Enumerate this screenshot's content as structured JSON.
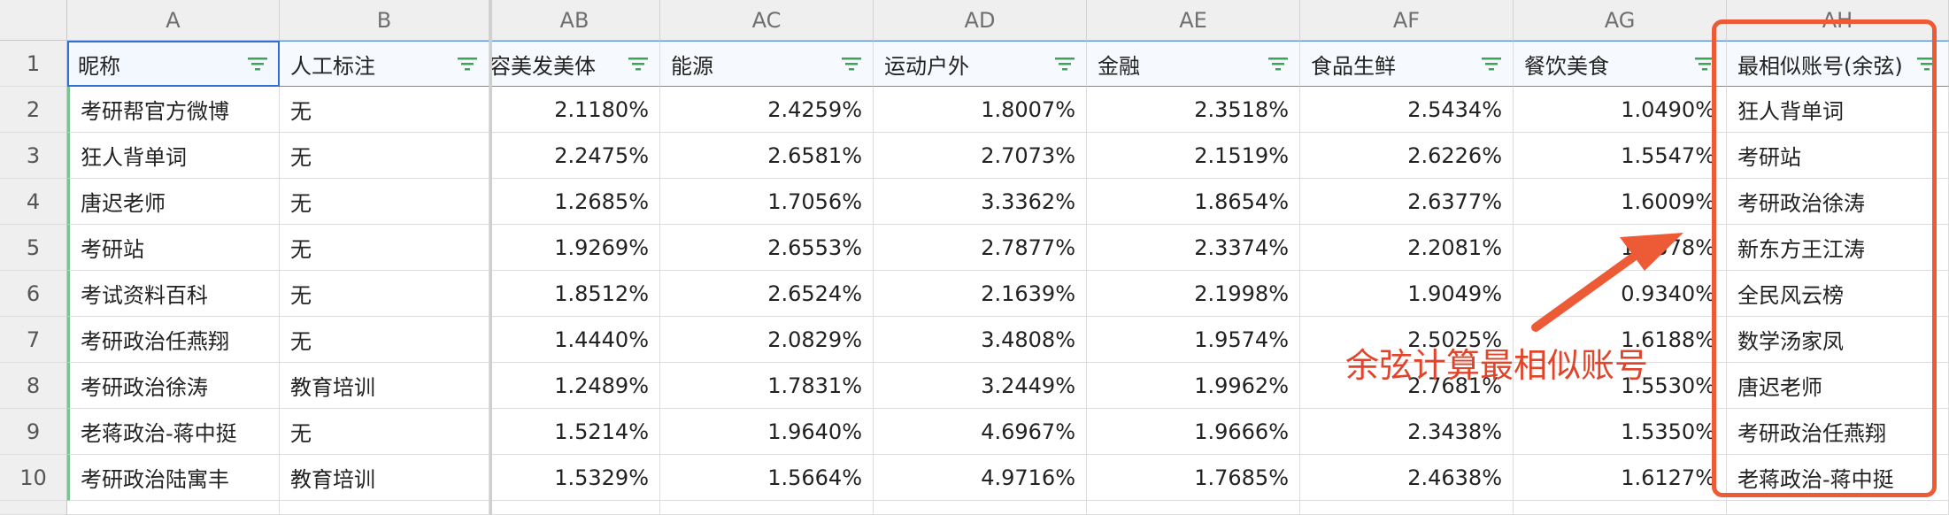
{
  "sheet": {
    "columns": [
      {
        "letter": "A",
        "header": "昵称",
        "align": "left"
      },
      {
        "letter": "B",
        "header": "人工标注",
        "align": "left"
      },
      {
        "letter": "AB",
        "header": "容美发美体",
        "align": "right"
      },
      {
        "letter": "AC",
        "header": "能源",
        "align": "right"
      },
      {
        "letter": "AD",
        "header": "运动户外",
        "align": "right"
      },
      {
        "letter": "AE",
        "header": "金融",
        "align": "right"
      },
      {
        "letter": "AF",
        "header": "食品生鲜",
        "align": "right"
      },
      {
        "letter": "AG",
        "header": "餐饮美食",
        "align": "right"
      },
      {
        "letter": "AH",
        "header": "最相似账号(余弦)",
        "align": "left"
      }
    ],
    "row_numbers": [
      "1",
      "2",
      "3",
      "4",
      "5",
      "6",
      "7",
      "8",
      "9",
      "10"
    ],
    "rows": [
      [
        "考研帮官方微博",
        "无",
        "2.1180%",
        "2.4259%",
        "1.8007%",
        "2.3518%",
        "2.5434%",
        "1.0490%",
        "狂人背单词"
      ],
      [
        "狂人背单词",
        "无",
        "2.2475%",
        "2.6581%",
        "2.7073%",
        "2.1519%",
        "2.6226%",
        "1.5547%",
        "考研站"
      ],
      [
        "唐迟老师",
        "无",
        "1.2685%",
        "1.7056%",
        "3.3362%",
        "1.8654%",
        "2.6377%",
        "1.6009%",
        "考研政治徐涛"
      ],
      [
        "考研站",
        "无",
        "1.9269%",
        "2.6553%",
        "2.7877%",
        "2.3374%",
        "2.2081%",
        "1.7378%",
        "新东方王江涛"
      ],
      [
        "考试资料百科",
        "无",
        "1.8512%",
        "2.6524%",
        "2.1639%",
        "2.1998%",
        "1.9049%",
        "0.9340%",
        "全民风云榜"
      ],
      [
        "考研政治任燕翔",
        "无",
        "1.4440%",
        "2.0829%",
        "3.4808%",
        "1.9574%",
        "2.5025%",
        "1.6188%",
        "数学汤家凤"
      ],
      [
        "考研政治徐涛",
        "教育培训",
        "1.2489%",
        "1.7831%",
        "3.2449%",
        "1.9962%",
        "2.7681%",
        "1.5530%",
        "唐迟老师"
      ],
      [
        "老蒋政治-蒋中挺",
        "无",
        "1.5214%",
        "1.9640%",
        "4.6967%",
        "1.9666%",
        "2.3438%",
        "1.5350%",
        "考研政治任燕翔"
      ],
      [
        "考研政治陆寓丰",
        "教育培训",
        "1.5329%",
        "1.5664%",
        "4.9716%",
        "1.7685%",
        "2.4638%",
        "1.6127%",
        "老蒋政治-蒋中挺"
      ]
    ]
  },
  "annotation": {
    "text": "余弦计算最相似账号",
    "color": "#e0452b",
    "box_color": "#ec5a36"
  },
  "theme": {
    "header_bg": "#efefef",
    "grid_line": "#dcdcdc",
    "selection": "#2f6fd6",
    "filter_icon": "#3aa655"
  }
}
